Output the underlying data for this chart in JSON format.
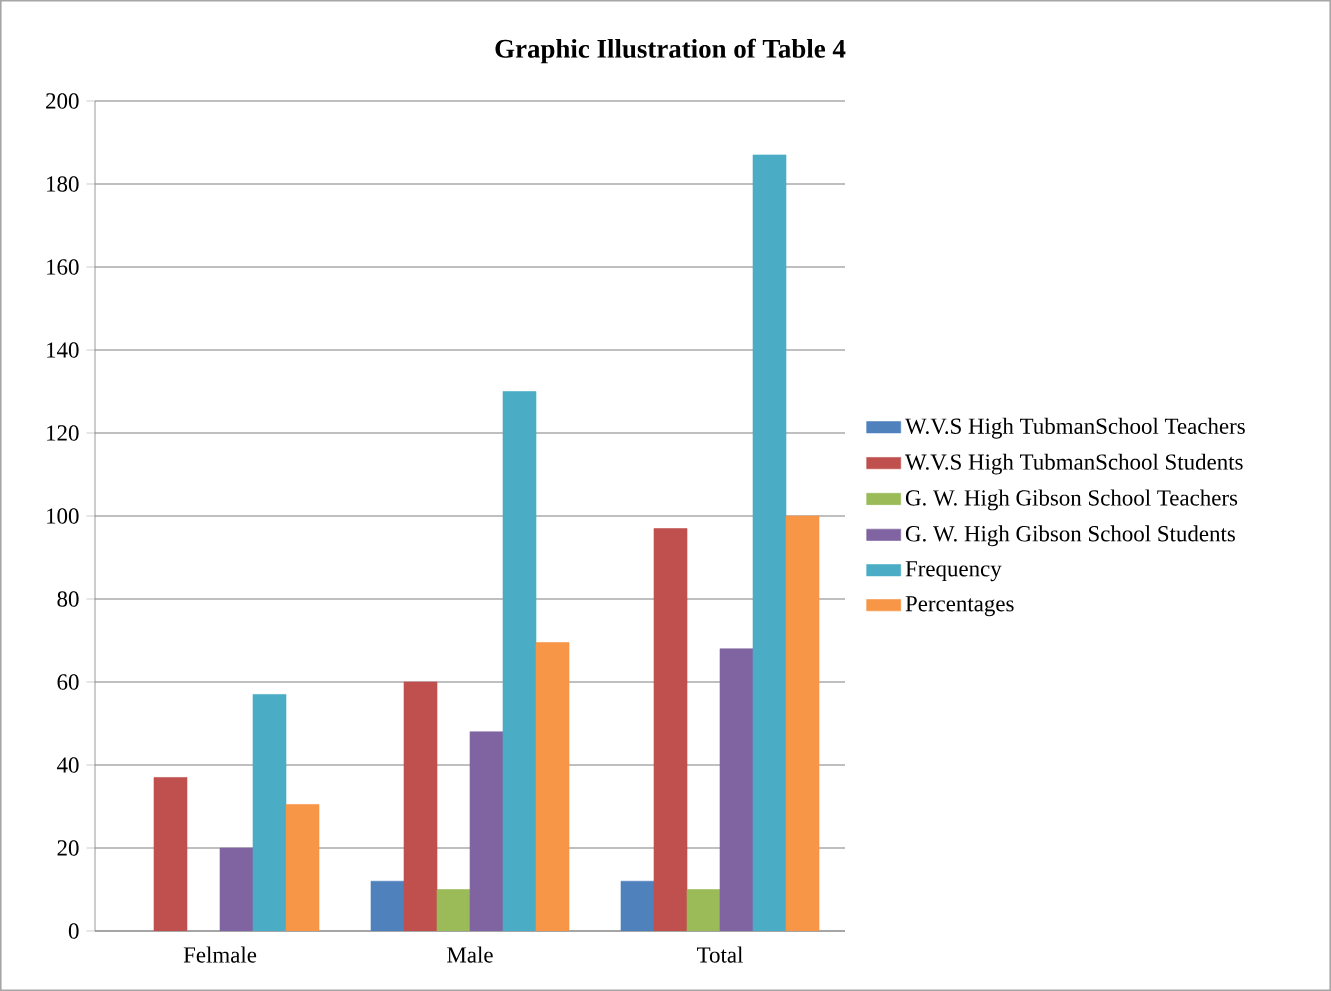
{
  "chart_data": {
    "type": "bar",
    "title": "Graphic Illustration of Table 4",
    "categories": [
      "Felmale",
      "Male",
      "Total"
    ],
    "series": [
      {
        "name": "W.V.S High TubmanSchool Teachers",
        "color": "#4f81bd",
        "values": [
          null,
          12,
          12
        ]
      },
      {
        "name": "W.V.S High TubmanSchool Students",
        "color": "#c0504d",
        "values": [
          37,
          60,
          97
        ]
      },
      {
        "name": "G. W. High Gibson School Teachers",
        "color": "#9bbb59",
        "values": [
          null,
          10,
          10
        ]
      },
      {
        "name": "G. W. High Gibson School Students",
        "color": "#8064a2",
        "values": [
          20,
          48,
          68
        ]
      },
      {
        "name": "Frequency",
        "color": "#4bacc6",
        "values": [
          57,
          130,
          187
        ]
      },
      {
        "name": "Percentages",
        "color": "#f79646",
        "values": [
          30.5,
          69.5,
          100
        ]
      }
    ],
    "ylim": [
      0,
      200
    ],
    "yticks": [
      0,
      20,
      40,
      60,
      80,
      100,
      120,
      140,
      160,
      180,
      200
    ],
    "grid": "y",
    "legend": "right"
  }
}
